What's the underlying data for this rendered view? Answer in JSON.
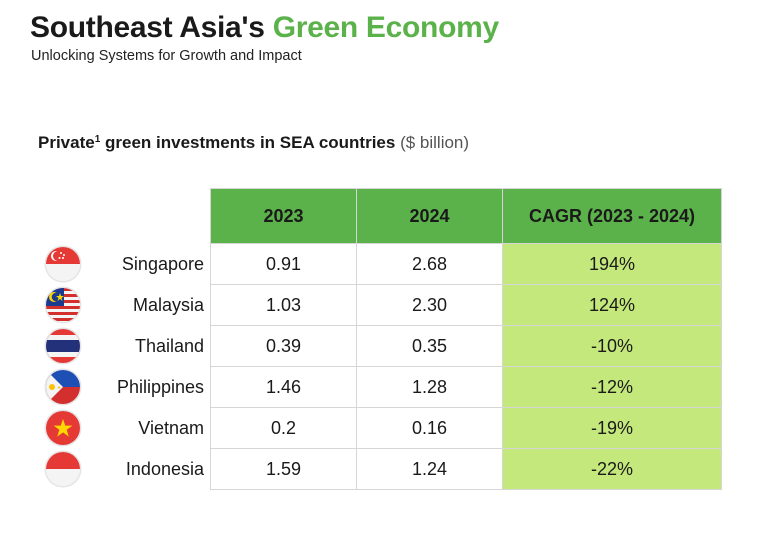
{
  "header": {
    "title_main": "Southeast Asia's",
    "title_accent": "Green Economy",
    "subtitle": "Unlocking Systems for Growth and Impact"
  },
  "chart_title": {
    "label": "Private",
    "superscript": "1",
    "rest": "green investments in SEA countries",
    "unit": "($ billion)"
  },
  "colors": {
    "accent_green": "#5cb24a",
    "cagr_fill": "#c4e87b"
  },
  "chart_data": {
    "type": "table",
    "title": "Private¹ green investments in SEA countries ($ billion)",
    "columns": [
      "2023",
      "2024",
      "CAGR (2023 - 2024)"
    ],
    "rows": [
      {
        "country": "Singapore",
        "flag": "singapore-flag-icon",
        "v2023": "0.91",
        "v2024": "2.68",
        "cagr": "194%"
      },
      {
        "country": "Malaysia",
        "flag": "malaysia-flag-icon",
        "v2023": "1.03",
        "v2024": "2.30",
        "cagr": "124%"
      },
      {
        "country": "Thailand",
        "flag": "thailand-flag-icon",
        "v2023": "0.39",
        "v2024": "0.35",
        "cagr": "-10%"
      },
      {
        "country": "Philippines",
        "flag": "philippines-flag-icon",
        "v2023": "1.46",
        "v2024": "1.28",
        "cagr": "-12%"
      },
      {
        "country": "Vietnam",
        "flag": "vietnam-flag-icon",
        "v2023": "0.2",
        "v2024": "0.16",
        "cagr": "-19%"
      },
      {
        "country": "Indonesia",
        "flag": "indonesia-flag-icon",
        "v2023": "1.59",
        "v2024": "1.24",
        "cagr": "-22%"
      }
    ]
  }
}
